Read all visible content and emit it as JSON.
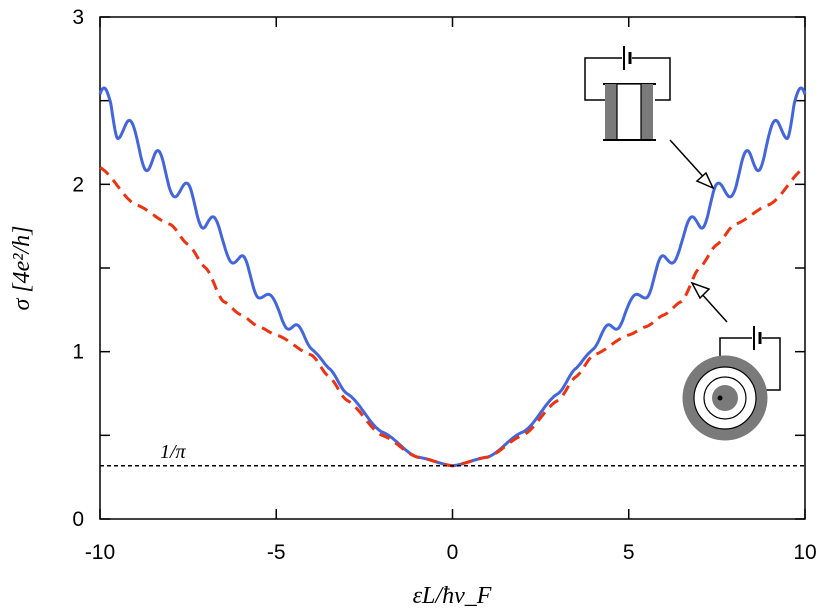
{
  "chart_data": {
    "type": "line",
    "xlabel": "εL/ħv_F",
    "ylabel": "σ [4e²/h]",
    "xlim": [
      -10,
      10
    ],
    "ylim": [
      0,
      3
    ],
    "x_ticks": [
      -10,
      -5,
      0,
      5,
      10
    ],
    "y_ticks": [
      0,
      1,
      2,
      3
    ],
    "x_tick_labels": [
      "-10",
      "-5",
      "0",
      "5",
      "10"
    ],
    "y_tick_labels": [
      "0",
      "1",
      "2",
      "3"
    ],
    "grid": false,
    "series": [
      {
        "style": "solid",
        "color": "#4466dd",
        "x": [
          0,
          1,
          2,
          3,
          3.5,
          4,
          4.5,
          5,
          5.5,
          6,
          6.5,
          7,
          7.5,
          8,
          8.5,
          9,
          9.5,
          9.7,
          10
        ],
        "y": [
          0.318,
          0.37,
          0.52,
          0.75,
          0.9,
          1.03,
          1.15,
          1.25,
          1.38,
          1.52,
          1.66,
          1.8,
          1.92,
          2.03,
          2.14,
          2.25,
          2.38,
          2.5,
          2.45
        ]
      },
      {
        "style": "dashed",
        "color": "#ee3311",
        "x": [
          0,
          1,
          2,
          3,
          3.5,
          4,
          5,
          5.5,
          6,
          6.5,
          7,
          7.5,
          8,
          9,
          10
        ],
        "y": [
          0.318,
          0.37,
          0.5,
          0.71,
          0.85,
          0.98,
          1.1,
          1.15,
          1.22,
          1.3,
          1.5,
          1.64,
          1.76,
          1.88,
          2.1
        ]
      },
      {
        "style": "dotted-reference",
        "color": "#000000",
        "x": [
          -10,
          10
        ],
        "y": [
          0.3183,
          0.3183
        ]
      }
    ],
    "annotations": [
      {
        "text": "1/π",
        "x": -8.6,
        "y": 0.39
      }
    ]
  }
}
